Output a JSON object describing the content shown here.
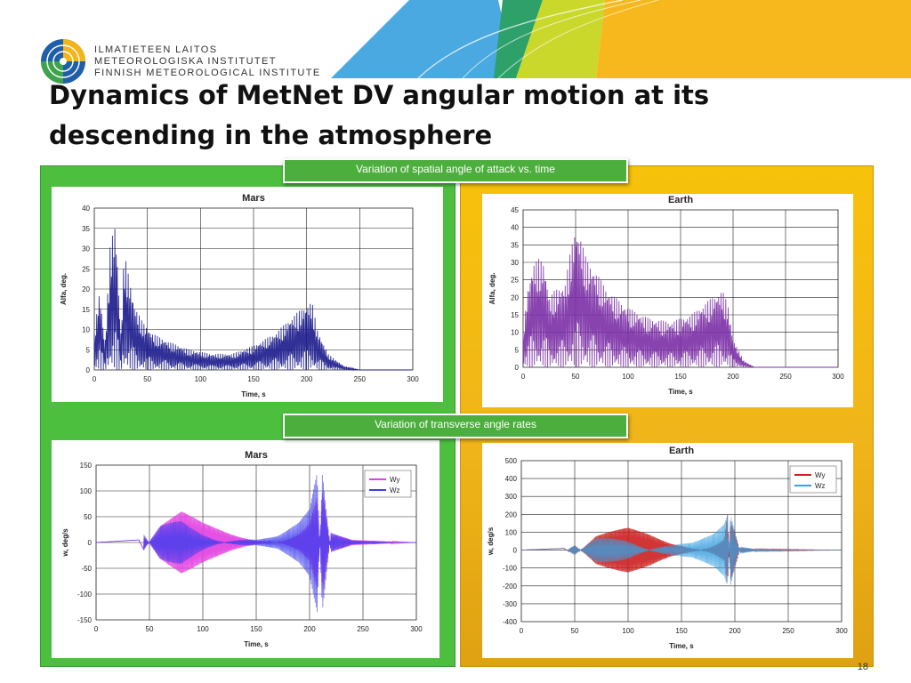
{
  "header": {
    "org_lines": [
      "ILMATIETEEN LAITOS",
      "METEOROLOGISKA INSTITUTET",
      "FINNISH METEOROLOGICAL INSTITUTE"
    ],
    "title_line1": "Dynamics of MetNet DV angular motion at its",
    "title_line2": "descending in the atmosphere"
  },
  "captions": {
    "top": "Variation of spatial angle of attack vs. time",
    "bottom": "Variation of transverse angle rates"
  },
  "page_number": "18",
  "colors": {
    "green_panel": "#4cbf3f",
    "yellow_panel": "#f7c20a",
    "caption_green": "#4cae3c"
  },
  "chart_data": [
    {
      "id": "mars-alfa",
      "type": "line",
      "title": "Mars",
      "xlabel": "Time, s",
      "ylabel": "Alfa, deg.",
      "xlim": [
        0,
        300
      ],
      "ylim": [
        0,
        40
      ],
      "xticks": [
        0,
        50,
        100,
        150,
        200,
        250,
        300
      ],
      "yticks": [
        0,
        5,
        10,
        15,
        20,
        25,
        30,
        35,
        40
      ],
      "grid": true,
      "legend": null,
      "series": [
        {
          "color": "#1a1a8c",
          "envelope": [
            [
              0,
              9
            ],
            [
              5,
              20
            ],
            [
              10,
              6
            ],
            [
              15,
              31
            ],
            [
              20,
              37
            ],
            [
              25,
              8
            ],
            [
              28,
              29
            ],
            [
              32,
              24
            ],
            [
              38,
              16
            ],
            [
              45,
              12
            ],
            [
              55,
              9
            ],
            [
              70,
              7
            ],
            [
              90,
              5
            ],
            [
              110,
              4
            ],
            [
              130,
              4
            ],
            [
              150,
              6
            ],
            [
              170,
              9
            ],
            [
              190,
              14
            ],
            [
              200,
              16
            ],
            [
              205,
              17
            ],
            [
              210,
              10
            ],
            [
              220,
              4
            ],
            [
              235,
              1
            ],
            [
              250,
              0
            ],
            [
              300,
              0
            ]
          ]
        }
      ]
    },
    {
      "id": "earth-alfa",
      "type": "line",
      "title": "Earth",
      "xlabel": "Time, s",
      "ylabel": "Alfa, deg.",
      "xlim": [
        0,
        300
      ],
      "ylim": [
        0,
        45
      ],
      "xticks": [
        0,
        50,
        100,
        150,
        200,
        250,
        300
      ],
      "yticks": [
        0,
        5,
        10,
        15,
        20,
        25,
        30,
        35,
        40,
        45
      ],
      "grid": true,
      "legend": null,
      "series": [
        {
          "color": "#7b2fa6",
          "envelope": [
            [
              0,
              10
            ],
            [
              5,
              24
            ],
            [
              10,
              30
            ],
            [
              15,
              31
            ],
            [
              20,
              30
            ],
            [
              25,
              20
            ],
            [
              30,
              22
            ],
            [
              40,
              24
            ],
            [
              45,
              33
            ],
            [
              50,
              40
            ],
            [
              55,
              37
            ],
            [
              60,
              31
            ],
            [
              70,
              27
            ],
            [
              80,
              22
            ],
            [
              100,
              17
            ],
            [
              120,
              14
            ],
            [
              140,
              13
            ],
            [
              160,
              15
            ],
            [
              180,
              20
            ],
            [
              190,
              22
            ],
            [
              195,
              18
            ],
            [
              200,
              8
            ],
            [
              210,
              2
            ],
            [
              220,
              0
            ],
            [
              300,
              0
            ]
          ]
        }
      ]
    },
    {
      "id": "mars-w",
      "type": "line",
      "title": "Mars",
      "xlabel": "Time, s",
      "ylabel": "w, deg/s",
      "xlim": [
        0,
        300
      ],
      "ylim": [
        -150,
        150
      ],
      "xticks": [
        0,
        50,
        100,
        150,
        200,
        250,
        300
      ],
      "yticks": [
        -150,
        -100,
        -50,
        0,
        50,
        100,
        150
      ],
      "grid": true,
      "legend": "top-right",
      "series": [
        {
          "name": "Wy",
          "color": "#e23fe0",
          "envelope": [
            [
              0,
              0
            ],
            [
              40,
              5
            ],
            [
              45,
              -15
            ],
            [
              60,
              35
            ],
            [
              80,
              60
            ],
            [
              100,
              40
            ],
            [
              130,
              20
            ],
            [
              150,
              10
            ],
            [
              170,
              15
            ],
            [
              190,
              40
            ],
            [
              200,
              65
            ],
            [
              207,
              135
            ],
            [
              212,
              -135
            ],
            [
              220,
              20
            ],
            [
              240,
              5
            ],
            [
              300,
              0
            ]
          ]
        },
        {
          "name": "Wz",
          "color": "#3d3ded",
          "envelope": [
            [
              0,
              0
            ],
            [
              40,
              5
            ],
            [
              45,
              -15
            ],
            [
              60,
              35
            ],
            [
              80,
              60
            ],
            [
              100,
              40
            ],
            [
              130,
              20
            ],
            [
              150,
              10
            ],
            [
              170,
              15
            ],
            [
              190,
              40
            ],
            [
              200,
              65
            ],
            [
              207,
              135
            ],
            [
              212,
              -135
            ],
            [
              220,
              20
            ],
            [
              240,
              5
            ],
            [
              300,
              0
            ]
          ]
        }
      ]
    },
    {
      "id": "earth-w",
      "type": "line",
      "title": "Earth",
      "xlabel": "Time, s",
      "ylabel": "w, deg/s",
      "xlim": [
        0,
        300
      ],
      "ylim": [
        -400,
        500
      ],
      "xticks": [
        0,
        50,
        100,
        150,
        200,
        250,
        300
      ],
      "yticks": [
        -400,
        -300,
        -200,
        -100,
        0,
        100,
        200,
        300,
        400,
        500
      ],
      "grid": true,
      "legend": "top-right",
      "series": [
        {
          "name": "Wy",
          "color": "#cc1f1f",
          "envelope": [
            [
              0,
              0
            ],
            [
              40,
              10
            ],
            [
              50,
              -30
            ],
            [
              70,
              80
            ],
            [
              100,
              130
            ],
            [
              120,
              110
            ],
            [
              140,
              70
            ],
            [
              160,
              60
            ],
            [
              180,
              100
            ],
            [
              190,
              150
            ],
            [
              193,
              450
            ],
            [
              196,
              -330
            ],
            [
              205,
              20
            ],
            [
              220,
              5
            ],
            [
              300,
              0
            ]
          ]
        },
        {
          "name": "Wz",
          "color": "#3aa0e0",
          "envelope": [
            [
              0,
              0
            ],
            [
              40,
              10
            ],
            [
              50,
              -30
            ],
            [
              70,
              80
            ],
            [
              100,
              130
            ],
            [
              120,
              110
            ],
            [
              140,
              70
            ],
            [
              160,
              60
            ],
            [
              180,
              100
            ],
            [
              190,
              150
            ],
            [
              193,
              200
            ],
            [
              196,
              -200
            ],
            [
              205,
              20
            ],
            [
              220,
              5
            ],
            [
              300,
              0
            ]
          ]
        }
      ]
    }
  ]
}
